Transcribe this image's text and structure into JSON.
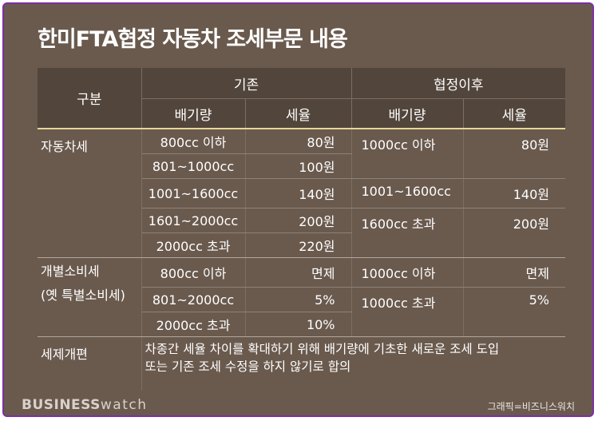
{
  "title": "한미FTA협정 자동차 조세부문 내용",
  "header": {
    "category": "구분",
    "before": "기존",
    "after": "협정이후",
    "displacement": "배기량",
    "tax_rate": "세율"
  },
  "auto_tax": {
    "category": "자동차세",
    "before": [
      {
        "displacement": "800cc 이하",
        "rate": "80원"
      },
      {
        "displacement": "801~1000cc",
        "rate": "100원"
      },
      {
        "displacement": "1001~1600cc",
        "rate": "140원"
      },
      {
        "displacement": "1601~2000cc",
        "rate": "200원"
      },
      {
        "displacement": "2000cc 초과",
        "rate": "220원"
      }
    ],
    "after": [
      {
        "displacement": "1000cc 이하",
        "rate": "80원"
      },
      {
        "displacement": "1001~1600cc",
        "rate": "140원"
      },
      {
        "displacement": "1600cc 초과",
        "rate": "200원"
      }
    ]
  },
  "consumption_tax": {
    "category_line1": "개별소비세",
    "category_line2": "(옛 특별소비세)",
    "before": [
      {
        "displacement": "800cc 이하",
        "rate": "면제"
      },
      {
        "displacement": "801~2000cc",
        "rate": "5%"
      },
      {
        "displacement": "2000cc 초과",
        "rate": "10%"
      }
    ],
    "after": [
      {
        "displacement": "1000cc 이하",
        "rate": "면제"
      },
      {
        "displacement": "1000cc 초과",
        "rate": "5%"
      }
    ]
  },
  "reform": {
    "category": "세제개편",
    "text_line1": "차종간 세율 차이를 확대하기 위해 배기량에 기초한 새로운 조세 도입",
    "text_line2": "또는 기존 조세 수정을 하지 않기로 합의"
  },
  "footer": {
    "logo_bold": "BUSINESS",
    "logo_light": "watch",
    "credit": "그래픽=비즈니스워치"
  }
}
